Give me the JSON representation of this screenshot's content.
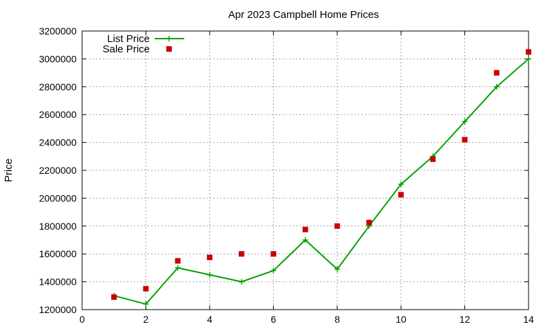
{
  "chart_data": {
    "type": "line",
    "title": "Apr 2023 Campbell Home Prices",
    "xlabel": "",
    "ylabel": "Price",
    "xlim": [
      0,
      14
    ],
    "ylim": [
      1200000,
      3200000
    ],
    "x_ticks": [
      "0",
      "2",
      "4",
      "6",
      "8",
      "10",
      "12",
      "14"
    ],
    "y_ticks": [
      "1200000",
      "1400000",
      "1600000",
      "1800000",
      "2000000",
      "2200000",
      "2400000",
      "2600000",
      "2800000",
      "3000000",
      "3200000"
    ],
    "grid": true,
    "legend_position": "top-left",
    "series": [
      {
        "name": "List Price",
        "style": "line-plus",
        "color": "#00a000",
        "points": [
          [
            1,
            1300000
          ],
          [
            2,
            1240000
          ],
          [
            3,
            1500000
          ],
          [
            4,
            1450000
          ],
          [
            5,
            1400000
          ],
          [
            6,
            1480000
          ],
          [
            7,
            1700000
          ],
          [
            8,
            1490000
          ],
          [
            9,
            1800000
          ],
          [
            10,
            2100000
          ],
          [
            11,
            2300000
          ],
          [
            12,
            2550000
          ],
          [
            13,
            2800000
          ],
          [
            14,
            3000000
          ]
        ]
      },
      {
        "name": "Sale Price",
        "style": "square",
        "color": "#cc0000",
        "points": [
          [
            1,
            1290000
          ],
          [
            2,
            1350000
          ],
          [
            3,
            1550000
          ],
          [
            4,
            1575000
          ],
          [
            5,
            1600000
          ],
          [
            6,
            1600000
          ],
          [
            7,
            1775000
          ],
          [
            8,
            1800000
          ],
          [
            9,
            1825000
          ],
          [
            10,
            2025000
          ],
          [
            11,
            2280000
          ],
          [
            12,
            2420000
          ],
          [
            13,
            2900000
          ],
          [
            14,
            3050000
          ]
        ]
      }
    ]
  }
}
